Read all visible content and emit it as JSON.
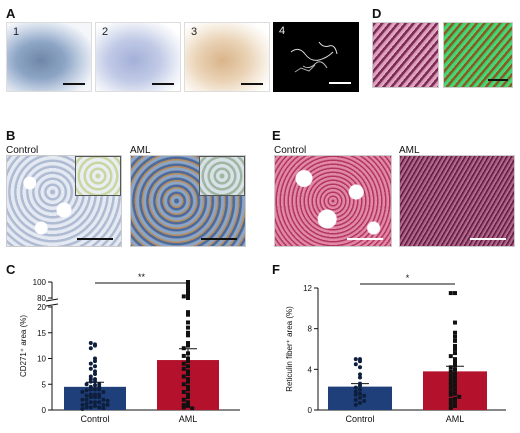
{
  "panels": {
    "A": {
      "label": "A",
      "tiles": [
        "1",
        "2",
        "3",
        "4"
      ]
    },
    "B": {
      "label": "B",
      "left": "Control",
      "right": "AML"
    },
    "C": {
      "label": "C"
    },
    "D": {
      "label": "D"
    },
    "E": {
      "label": "E",
      "left": "Control",
      "right": "AML"
    },
    "F": {
      "label": "F"
    }
  },
  "colors": {
    "control": "#1f3f7a",
    "aml": "#b4122c",
    "ihc_blue": "#8ea6c6",
    "stain_brown": "#b77a3b",
    "he_pink": "#d06a8a",
    "green_overlay": "#3fcf6f"
  },
  "chart_data": [
    {
      "type": "bar",
      "panel": "C",
      "categories": [
        "Control",
        "AML"
      ],
      "values": [
        4.5,
        9.7
      ],
      "error_upper": [
        5.4,
        11.9
      ],
      "ylabel": "CD271⁺ area (%)",
      "yticks": [
        "0",
        "5",
        "10",
        "15",
        "20",
        "80",
        "100"
      ],
      "ylim": [
        0,
        100
      ],
      "axis_break": [
        20,
        80
      ],
      "significance": "**",
      "points": {
        "Control": [
          22,
          13,
          12.5,
          12,
          10,
          9.5,
          9,
          8.5,
          8,
          7.5,
          7,
          6.5,
          6,
          6,
          5.5,
          5.5,
          5,
          5,
          4.8,
          4.5,
          4.5,
          4,
          4,
          4,
          3.8,
          3.5,
          3.5,
          3,
          3,
          3,
          2.8,
          2.5,
          2.5,
          2.5,
          2,
          2,
          2,
          1.8,
          1.5,
          1.5,
          1.5,
          1.2,
          1,
          1,
          1,
          0.8,
          0.5,
          0.5,
          0.5,
          0.3,
          0.2
        ],
        "AML": [
          100,
          95,
          90,
          85,
          82,
          80,
          19,
          18.5,
          17,
          16,
          15,
          14.5,
          13,
          12.5,
          12,
          11,
          10.5,
          10,
          9.5,
          9,
          8.5,
          8,
          7.5,
          7,
          6.5,
          6,
          5.5,
          5,
          4.5,
          4,
          3.5,
          3,
          2.5,
          2,
          1.5,
          1,
          0.8,
          0.5,
          0.3
        ]
      }
    },
    {
      "type": "bar",
      "panel": "F",
      "categories": [
        "Control",
        "AML"
      ],
      "values": [
        2.3,
        3.8
      ],
      "error_upper": [
        2.6,
        4.3
      ],
      "ylabel": "Reticulin fiber⁺ area (%)",
      "yticks": [
        "0",
        "4",
        "8",
        "12"
      ],
      "ylim": [
        0,
        12
      ],
      "significance": "*",
      "points": {
        "Control": [
          5,
          5,
          4.8,
          4.5,
          4.2,
          3.5,
          3.2,
          2.6,
          2.4,
          2.2,
          2,
          1.8,
          1.6,
          1.5,
          1.4,
          1.2,
          1,
          0.9,
          0.7,
          0.5
        ],
        "AML": [
          11.5,
          11.5,
          8.6,
          7.6,
          7.2,
          6.8,
          6.3,
          6,
          5.6,
          5.3,
          5,
          4.7,
          4.4,
          4.2,
          4,
          3.8,
          3.6,
          3.4,
          3.2,
          3,
          2.8,
          2.6,
          2.4,
          2.2,
          2,
          1.8,
          1.6,
          1.5,
          1.3,
          1.1,
          1,
          0.8,
          0.6,
          0.4,
          0.2
        ]
      }
    }
  ]
}
